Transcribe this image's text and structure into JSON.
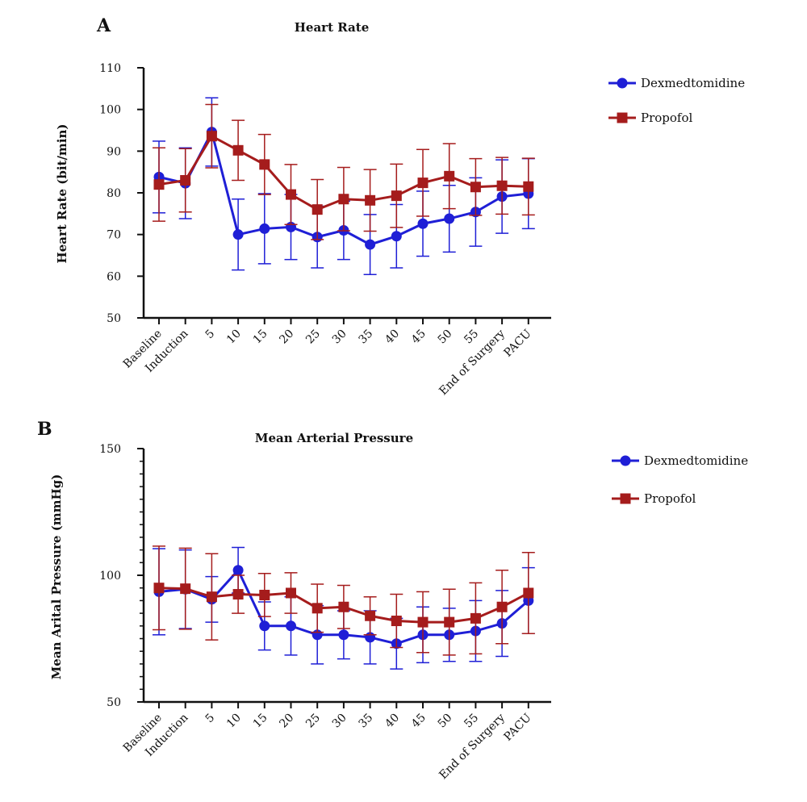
{
  "colors": {
    "dexmedetomidine": "#1f1fd6",
    "propofol": "#a51c1c",
    "axis": "#111111"
  },
  "chart_data": [
    {
      "panel": "A",
      "type": "line",
      "title": "Heart Rate",
      "xlabel": "",
      "ylabel": "Heart Rate (bit/min)",
      "ylim": [
        50,
        110
      ],
      "yticks": [
        50,
        60,
        70,
        80,
        90,
        100,
        110
      ],
      "grid": false,
      "legend": "top-right",
      "categories": [
        "Baseline",
        "Induction",
        "5",
        "10",
        "15",
        "20",
        "25",
        "30",
        "35",
        "40",
        "45",
        "50",
        "55",
        "End of Surgery",
        "PACU"
      ],
      "series": [
        {
          "name": "Dexmedtomidine",
          "marker": "circle",
          "values": [
            83.8,
            82.3,
            94.6,
            70.0,
            71.4,
            71.8,
            69.4,
            71.0,
            67.6,
            69.6,
            72.6,
            73.8,
            75.4,
            79.1,
            79.8
          ],
          "error": [
            8.6,
            8.5,
            8.2,
            8.5,
            8.4,
            7.8,
            7.4,
            7.0,
            7.2,
            7.6,
            7.8,
            8.0,
            8.2,
            8.8,
            8.4
          ]
        },
        {
          "name": "Propofol",
          "marker": "square",
          "values": [
            82.0,
            83.0,
            93.6,
            90.2,
            86.8,
            79.6,
            76.0,
            78.5,
            78.2,
            79.3,
            82.4,
            84.0,
            81.4,
            81.7,
            81.5
          ],
          "error": [
            8.8,
            7.6,
            7.6,
            7.2,
            7.2,
            7.2,
            7.2,
            7.6,
            7.4,
            7.6,
            8.0,
            7.8,
            6.8,
            6.8,
            6.8
          ]
        }
      ]
    },
    {
      "panel": "B",
      "type": "line",
      "title": "Mean Arterial Pressure",
      "xlabel": "",
      "ylabel": "Mean Arital Pressure (mmHg)",
      "ylim": [
        50,
        150
      ],
      "yticks": [
        50,
        100,
        150
      ],
      "grid": false,
      "legend": "top-right",
      "categories": [
        "Baseline",
        "Induction",
        "5",
        "10",
        "15",
        "20",
        "25",
        "30",
        "35",
        "40",
        "45",
        "50",
        "55",
        "End of Surgery",
        "PACU"
      ],
      "series": [
        {
          "name": "Dexmedtomidine",
          "marker": "circle",
          "values": [
            93.5,
            94.5,
            90.5,
            102.0,
            80.0,
            80.0,
            76.5,
            76.5,
            75.5,
            73.0,
            76.5,
            76.5,
            78.0,
            81.0,
            90.0
          ],
          "error": [
            17.0,
            15.5,
            9.0,
            9.0,
            9.5,
            11.5,
            11.5,
            9.5,
            10.5,
            10.0,
            11.0,
            10.5,
            12.0,
            13.0,
            13.0
          ]
        },
        {
          "name": "Propofol",
          "marker": "square",
          "values": [
            95.0,
            94.7,
            91.5,
            92.5,
            92.2,
            93.0,
            87.0,
            87.5,
            84.0,
            82.0,
            81.5,
            81.5,
            83.0,
            87.5,
            93.0
          ],
          "error": [
            16.5,
            16.0,
            17.0,
            7.5,
            8.5,
            8.0,
            9.5,
            8.5,
            7.5,
            10.5,
            12.0,
            13.0,
            14.0,
            14.5,
            16.0
          ]
        }
      ]
    }
  ]
}
